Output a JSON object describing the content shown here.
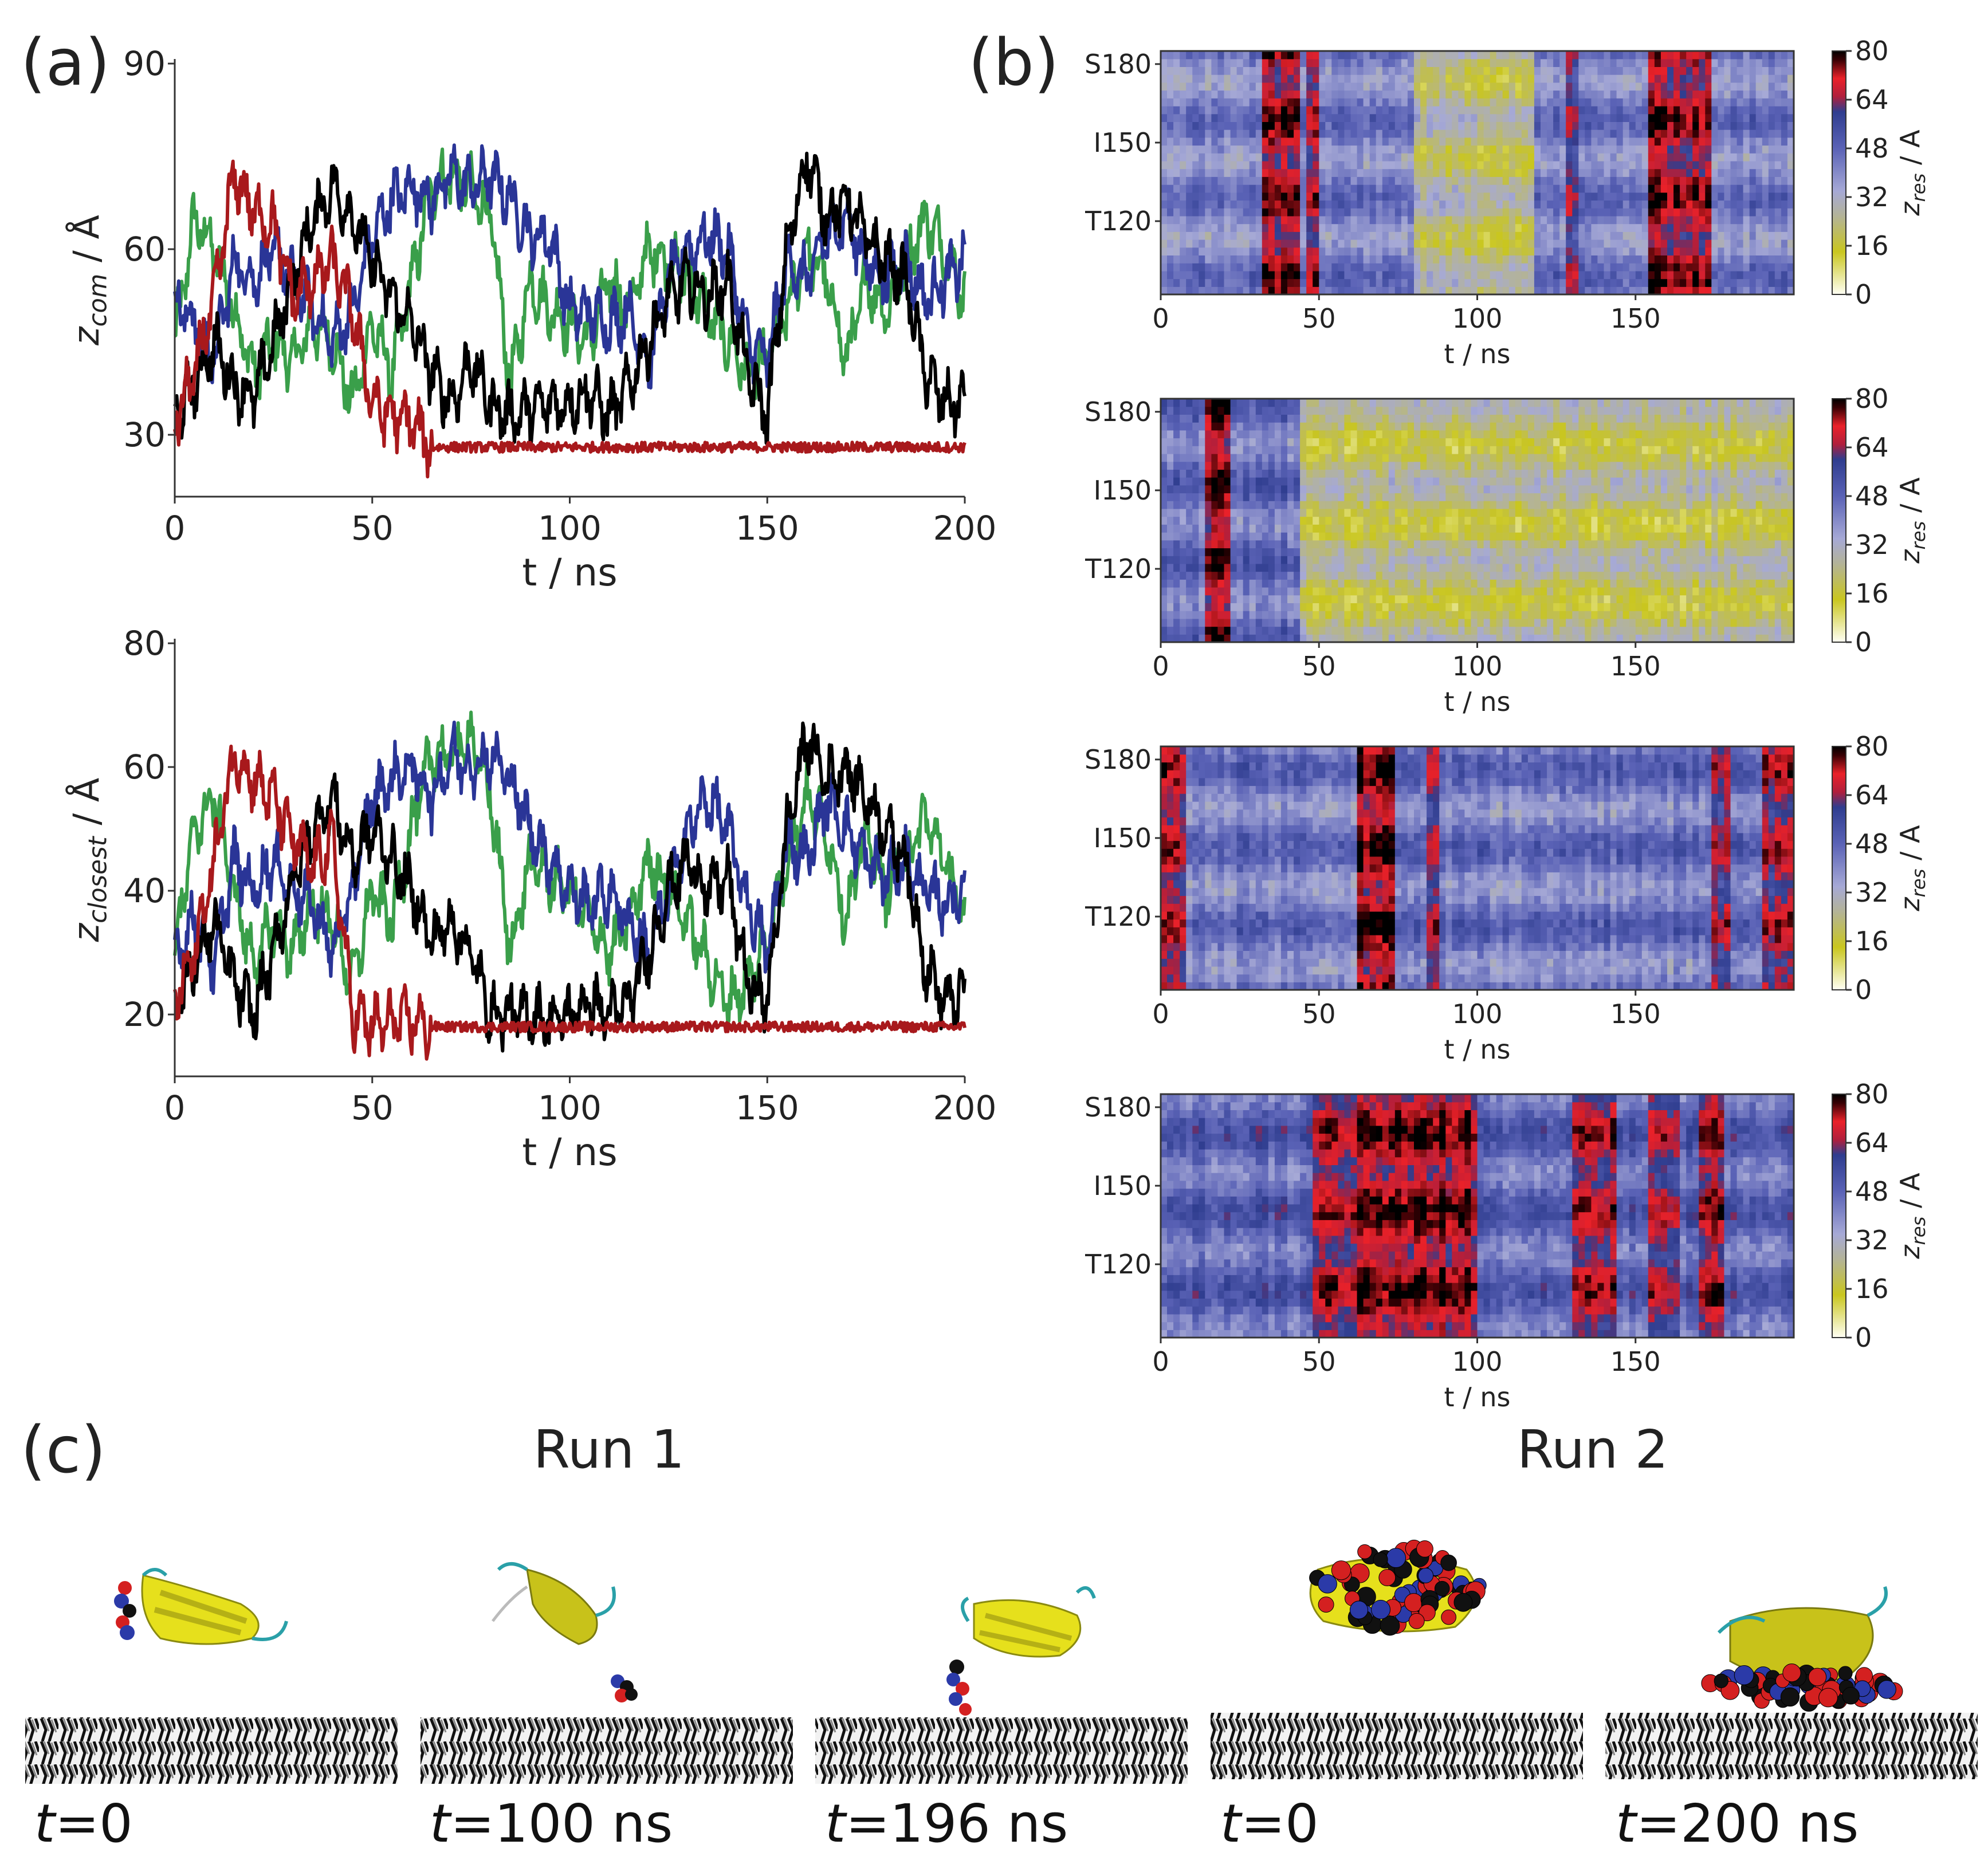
{
  "panel_labels": {
    "a": "(a)",
    "b": "(b)",
    "c": "(c)"
  },
  "chart_data": [
    {
      "type": "line",
      "id": "zcom",
      "xlabel": "t / ns",
      "ylabel": {
        "symbol": "z",
        "sub": "com",
        "unit": " / Å"
      },
      "xlim": [
        0,
        200
      ],
      "ylim": [
        20,
        90
      ],
      "xticks": [
        0,
        50,
        100,
        150,
        200
      ],
      "xtick_labels": [
        "0",
        "50",
        "100",
        "150",
        "200"
      ],
      "yticks": [
        30,
        60,
        90
      ],
      "ytick_labels": [
        "30",
        "60",
        "90"
      ],
      "grid": false,
      "x_step": 5,
      "series": [
        {
          "color": "#3a9f4a",
          "values": [
            45,
            65,
            60,
            50,
            40,
            45,
            42,
            48,
            45,
            35,
            48,
            40,
            55,
            70,
            72,
            70,
            65,
            38,
            55,
            50,
            48,
            45,
            55,
            50,
            60,
            58,
            55,
            50,
            45,
            40,
            42,
            50,
            60,
            55,
            42,
            55,
            50,
            58,
            65,
            60,
            52
          ]
        },
        {
          "color": "#2a3597",
          "values": [
            52,
            48,
            42,
            58,
            55,
            60,
            55,
            50,
            45,
            50,
            62,
            68,
            70,
            68,
            72,
            70,
            72,
            68,
            62,
            62,
            50,
            50,
            48,
            50,
            42,
            55,
            60,
            62,
            60,
            45,
            42,
            58,
            55,
            62,
            65,
            58,
            55,
            58,
            52,
            55,
            58
          ]
        },
        {
          "color": "#000000",
          "values": [
            33,
            38,
            45,
            38,
            36,
            45,
            55,
            65,
            70,
            65,
            58,
            52,
            48,
            40,
            35,
            42,
            35,
            33,
            34,
            35,
            35,
            37,
            33,
            38,
            45,
            52,
            55,
            52,
            55,
            40,
            33,
            60,
            75,
            65,
            68,
            62,
            58,
            55,
            40,
            35,
            35
          ]
        },
        {
          "color": "#a8191c",
          "values": [
            32,
            40,
            52,
            72,
            66,
            64,
            52,
            55,
            58,
            50,
            35,
            33,
            32,
            28,
            28,
            28,
            28,
            28,
            28,
            28,
            28,
            28,
            28,
            28,
            28,
            28,
            28,
            28,
            28,
            28,
            28,
            28,
            28,
            28,
            28,
            28,
            28,
            28,
            28,
            28,
            28
          ]
        }
      ]
    },
    {
      "type": "line",
      "id": "zclosest",
      "xlabel": "t / ns",
      "ylabel": {
        "symbol": "z",
        "sub": "closest",
        "unit": " / Å"
      },
      "xlim": [
        0,
        200
      ],
      "ylim": [
        10,
        80
      ],
      "xticks": [
        0,
        50,
        100,
        150,
        200
      ],
      "xtick_labels": [
        "0",
        "50",
        "100",
        "150",
        "200"
      ],
      "yticks": [
        20,
        40,
        60,
        80
      ],
      "ytick_labels": [
        "20",
        "40",
        "60",
        "80"
      ],
      "grid": false,
      "x_step": 5,
      "series": [
        {
          "color": "#3a9f4a",
          "values": [
            30,
            50,
            55,
            40,
            28,
            35,
            30,
            38,
            35,
            25,
            40,
            35,
            50,
            62,
            62,
            65,
            55,
            30,
            45,
            42,
            40,
            35,
            30,
            35,
            45,
            40,
            35,
            28,
            22,
            25,
            32,
            45,
            55,
            50,
            35,
            50,
            40,
            45,
            52,
            45,
            35
          ]
        },
        {
          "color": "#2a3597",
          "values": [
            30,
            35,
            28,
            45,
            40,
            45,
            40,
            38,
            30,
            40,
            55,
            58,
            60,
            55,
            62,
            60,
            62,
            58,
            50,
            45,
            40,
            38,
            40,
            35,
            30,
            40,
            50,
            55,
            50,
            38,
            30,
            48,
            45,
            55,
            50,
            45,
            42,
            45,
            40,
            38,
            40
          ]
        },
        {
          "color": "#000000",
          "values": [
            22,
            28,
            35,
            25,
            20,
            30,
            42,
            50,
            55,
            45,
            50,
            45,
            40,
            32,
            35,
            30,
            20,
            20,
            20,
            19,
            20,
            22,
            20,
            22,
            30,
            40,
            45,
            40,
            42,
            25,
            22,
            50,
            65,
            58,
            60,
            55,
            50,
            45,
            28,
            22,
            23
          ]
        },
        {
          "color": "#a8191c",
          "values": [
            22,
            30,
            45,
            62,
            58,
            55,
            48,
            44,
            48,
            20,
            18,
            19,
            19,
            18,
            18,
            18,
            18,
            18,
            18,
            18,
            18,
            18,
            18,
            18,
            18,
            18,
            18,
            18,
            18,
            18,
            18,
            18,
            18,
            18,
            18,
            18,
            18,
            18,
            18,
            18,
            18
          ]
        }
      ]
    },
    {
      "type": "heatmap",
      "id": "zres-1",
      "xlabel": "t / ns",
      "xlim": [
        0,
        200
      ],
      "xticks": [
        0,
        50,
        100,
        150
      ],
      "xtick_labels": [
        "0",
        "50",
        "100",
        "150"
      ],
      "ylim": [
        92,
        185
      ],
      "yticks": [
        180,
        150,
        120
      ],
      "ytick_labels": [
        "S180",
        "I150",
        "T120"
      ],
      "colorbar": {
        "label": {
          "symbol": "z",
          "sub": "res",
          "unit": " / A"
        },
        "range": [
          0,
          80
        ],
        "ticks": [
          "0",
          "16",
          "32",
          "48",
          "64",
          "80"
        ]
      },
      "base_z": 42,
      "regions": [
        {
          "t": [
            80,
            118
          ],
          "z": 24
        },
        {
          "t": [
            33,
            45
          ],
          "z": 70
        },
        {
          "t": [
            47,
            51
          ],
          "z": 66
        },
        {
          "t": [
            128,
            132
          ],
          "z": 62
        },
        {
          "t": [
            155,
            175
          ],
          "z": 70
        }
      ]
    },
    {
      "type": "heatmap",
      "id": "zres-2",
      "xlabel": "t / ns",
      "xlim": [
        0,
        200
      ],
      "xticks": [
        0,
        50,
        100,
        150
      ],
      "xtick_labels": [
        "0",
        "50",
        "100",
        "150"
      ],
      "ylim": [
        92,
        185
      ],
      "yticks": [
        180,
        150,
        120
      ],
      "ytick_labels": [
        "S180",
        "I150",
        "T120"
      ],
      "colorbar": {
        "label": {
          "symbol": "z",
          "sub": "res",
          "unit": " / A"
        },
        "range": [
          0,
          80
        ],
        "ticks": [
          "0",
          "16",
          "32",
          "48",
          "64",
          "80"
        ]
      },
      "base_z": 46,
      "regions": [
        {
          "t": [
            45,
            200
          ],
          "z": 22
        },
        {
          "t": [
            14,
            22
          ],
          "z": 72
        }
      ]
    },
    {
      "type": "heatmap",
      "id": "zres-3",
      "xlabel": "t / ns",
      "xlim": [
        0,
        200
      ],
      "xticks": [
        0,
        50,
        100,
        150
      ],
      "xtick_labels": [
        "0",
        "50",
        "100",
        "150"
      ],
      "ylim": [
        92,
        185
      ],
      "yticks": [
        180,
        150,
        120
      ],
      "ytick_labels": [
        "S180",
        "I150",
        "T120"
      ],
      "colorbar": {
        "label": {
          "symbol": "z",
          "sub": "res",
          "unit": " / A"
        },
        "range": [
          0,
          80
        ],
        "ticks": [
          "0",
          "16",
          "32",
          "48",
          "64",
          "80"
        ]
      },
      "base_z": 44,
      "regions": [
        {
          "t": [
            0,
            8
          ],
          "z": 66
        },
        {
          "t": [
            62,
            75
          ],
          "z": 74
        },
        {
          "t": [
            85,
            88
          ],
          "z": 64
        },
        {
          "t": [
            175,
            180
          ],
          "z": 64
        },
        {
          "t": [
            190,
            200
          ],
          "z": 66
        }
      ]
    },
    {
      "type": "heatmap",
      "id": "zres-4",
      "xlabel": "t / ns",
      "xlim": [
        0,
        200
      ],
      "xticks": [
        0,
        50,
        100,
        150
      ],
      "xtick_labels": [
        "0",
        "50",
        "100",
        "150"
      ],
      "ylim": [
        92,
        185
      ],
      "yticks": [
        180,
        150,
        120
      ],
      "ytick_labels": [
        "S180",
        "I150",
        "T120"
      ],
      "colorbar": {
        "label": {
          "symbol": "z",
          "sub": "res",
          "unit": " / A"
        },
        "range": [
          0,
          80
        ],
        "ticks": [
          "0",
          "16",
          "32",
          "48",
          "64",
          "80"
        ]
      },
      "base_z": 48,
      "regions": [
        {
          "t": [
            48,
            62
          ],
          "z": 68
        },
        {
          "t": [
            62,
            100
          ],
          "z": 72
        },
        {
          "t": [
            130,
            145
          ],
          "z": 68
        },
        {
          "t": [
            155,
            165
          ],
          "z": 64
        },
        {
          "t": [
            170,
            178
          ],
          "z": 70
        }
      ]
    }
  ],
  "snapshots": {
    "run_labels": [
      "Run 1",
      "Run 2"
    ],
    "items": [
      {
        "t": "t",
        "rest": "=0"
      },
      {
        "t": "t",
        "rest": "=100 ns"
      },
      {
        "t": "t",
        "rest": "=196 ns"
      },
      {
        "t": "t",
        "rest": "=0"
      },
      {
        "t": "t",
        "rest": "=200 ns"
      }
    ]
  }
}
